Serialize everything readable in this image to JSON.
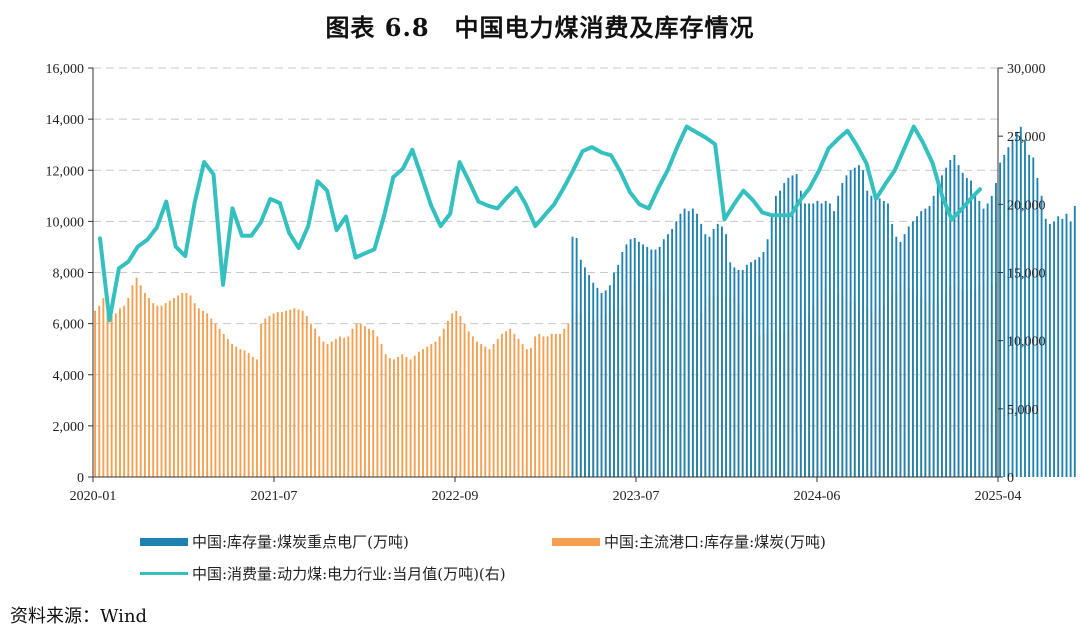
{
  "title": "图表 6.8　中国电力煤消费及库存情况",
  "source": "资料来源：Wind",
  "colors": {
    "power_plant": "#1f82b0",
    "port": "#f5a050",
    "consumption": "#33c0bf",
    "axis": "#333333",
    "grid": "#c8c8c8"
  },
  "chart_data": {
    "type": "bar+line",
    "x_tick_labels": [
      "2020-01",
      "2021-07",
      "2022-09",
      "2023-07",
      "2024-06",
      "2025-04"
    ],
    "y_left": {
      "ticks": [
        "0",
        "2,000",
        "4,000",
        "6,000",
        "8,000",
        "10,000",
        "12,000",
        "14,000",
        "16,000"
      ],
      "lim": [
        0,
        16000
      ]
    },
    "y_right": {
      "ticks": [
        "0",
        "5,000",
        "10,000",
        "15,000",
        "20,000",
        "25,000",
        "30,000"
      ],
      "lim": [
        0,
        30000
      ]
    },
    "grid": true,
    "legend_position": "bottom",
    "series": [
      {
        "name": "中国:库存量:煤炭重点电厂(万吨)",
        "type": "bar",
        "axis": "left",
        "color_key": "power_plant",
        "start_index": 115,
        "values": [
          9400,
          9350,
          8500,
          8200,
          7900,
          7600,
          7400,
          7200,
          7300,
          7500,
          8000,
          8300,
          8800,
          9100,
          9300,
          9350,
          9200,
          9100,
          9000,
          8900,
          8900,
          9000,
          9300,
          9500,
          9700,
          10000,
          10300,
          10500,
          10400,
          10500,
          10300,
          9900,
          9500,
          9400,
          9700,
          9900,
          9800,
          9500,
          8400,
          8200,
          8100,
          8100,
          8300,
          8400,
          8500,
          8600,
          8800,
          9300,
          10200,
          11000,
          11200,
          11500,
          11700,
          11800,
          11850,
          11200,
          10700,
          10700,
          10700,
          10800,
          10700,
          10800,
          10700,
          10400,
          11000,
          11500,
          11800,
          12000,
          12100,
          12200,
          12000,
          11200,
          11000,
          10900,
          10900,
          10800,
          10700,
          9900,
          9400,
          9200,
          9500,
          9800,
          10000,
          10200,
          10400,
          10500,
          10600,
          11000,
          11500,
          11800,
          12100,
          12400,
          12600,
          12200,
          11900,
          11700,
          11600,
          11000,
          10800,
          10500,
          10700,
          11000,
          11500,
          12300,
          12600,
          12900,
          13200,
          13500,
          13700,
          13200,
          12600,
          12500,
          11700,
          11000,
          10100,
          9900,
          10000,
          10200,
          10100,
          10300,
          10000,
          10600
        ]
      },
      {
        "name": "中国:主流港口:库存量:煤炭(万吨)",
        "type": "bar",
        "axis": "left",
        "color_key": "port",
        "start_index": 0,
        "values": [
          6500,
          6700,
          7000,
          6600,
          6300,
          6400,
          6600,
          6700,
          7000,
          7500,
          7800,
          7500,
          7200,
          7000,
          6800,
          6700,
          6700,
          6800,
          6900,
          7000,
          7100,
          7200,
          7200,
          7100,
          6800,
          6600,
          6500,
          6400,
          6200,
          6000,
          5800,
          5600,
          5400,
          5200,
          5100,
          5000,
          4950,
          4850,
          4700,
          4600,
          6000,
          6200,
          6300,
          6400,
          6450,
          6450,
          6500,
          6550,
          6600,
          6550,
          6500,
          6300,
          6000,
          5800,
          5500,
          5300,
          5200,
          5300,
          5400,
          5500,
          5450,
          5500,
          5800,
          6000,
          6000,
          5900,
          5800,
          5750,
          5500,
          5200,
          4800,
          4650,
          4600,
          4700,
          4800,
          4700,
          4600,
          4750,
          4900,
          5000,
          5100,
          5200,
          5300,
          5500,
          5800,
          6100,
          6400,
          6500,
          6300,
          6000,
          5700,
          5500,
          5300,
          5200,
          5100,
          5000,
          5200,
          5400,
          5600,
          5700,
          5800,
          5600,
          5400,
          5200,
          5000,
          5050,
          5500,
          5600,
          5500,
          5500,
          5600,
          5600,
          5600,
          5800,
          6000,
          6300,
          6500,
          6400,
          6200,
          6100,
          6100,
          6200,
          6300,
          6400,
          6500,
          6600,
          6600,
          6700,
          7000,
          7300,
          7600,
          7800,
          7600,
          7500,
          7400,
          7400,
          7300,
          7200,
          7000,
          6800,
          6500,
          6200,
          6000,
          6000,
          6100,
          6200,
          6400,
          6700,
          7000,
          7100,
          7100,
          7000,
          7000,
          7000,
          7100,
          6700,
          6300,
          6000,
          5800,
          5700,
          5600,
          5600,
          5650,
          5700,
          5700,
          5800,
          5700,
          5700,
          5800,
          5900,
          6000,
          6200,
          6400,
          6700,
          7000,
          7200,
          7400,
          7400,
          7300,
          7200,
          7100,
          7000,
          6900,
          6800,
          6700,
          6700,
          6600,
          6500,
          6400,
          6600,
          6700,
          6900,
          7100,
          7300,
          7500,
          7600,
          7400,
          7300,
          7200,
          7000,
          6900,
          6800,
          6900,
          6800,
          6900,
          7200,
          7500,
          7500,
          7400,
          7300,
          7300,
          7400,
          7300,
          7500,
          7500,
          7400,
          7500,
          7600
        ]
      },
      {
        "name": "中国:消费量:动力煤:电力行业:当月值(万吨)(右)",
        "type": "line",
        "axis": "right",
        "color_key": "consumption",
        "values": [
          17500,
          11500,
          15300,
          15800,
          16900,
          17400,
          18300,
          20200,
          16900,
          16200,
          20100,
          23100,
          22200,
          14100,
          19700,
          17700,
          17700,
          18700,
          20400,
          20100,
          17900,
          16800,
          18400,
          21700,
          21000,
          18100,
          19100,
          16100,
          16400,
          16700,
          19100,
          22000,
          22600,
          24000,
          22000,
          19900,
          18400,
          19300,
          23100,
          21700,
          20200,
          19900,
          19700,
          20500,
          21200,
          20000,
          18400,
          19200,
          20000,
          21200,
          22500,
          23900,
          24200,
          23800,
          23600,
          22400,
          20900,
          20000,
          19700,
          21200,
          22500,
          24200,
          25700,
          25300,
          24900,
          24400,
          18900,
          20000,
          21000,
          20300,
          19400,
          19200,
          19200,
          19200,
          20300,
          21200,
          22500,
          24100,
          24800,
          25400,
          24300,
          23000,
          20400,
          21500,
          22500,
          24100,
          25700,
          24500,
          23000,
          20600,
          18900,
          19600,
          20400,
          21100
        ]
      }
    ]
  },
  "legend": [
    {
      "label": "中国:库存量:煤炭重点电厂(万吨)",
      "color_key": "power_plant",
      "kind": "bar"
    },
    {
      "label": "中国:主流港口:库存量:煤炭(万吨)",
      "color_key": "port",
      "kind": "bar"
    },
    {
      "label": "中国:消费量:动力煤:电力行业:当月值(万吨)(右)",
      "color_key": "consumption",
      "kind": "line"
    }
  ]
}
